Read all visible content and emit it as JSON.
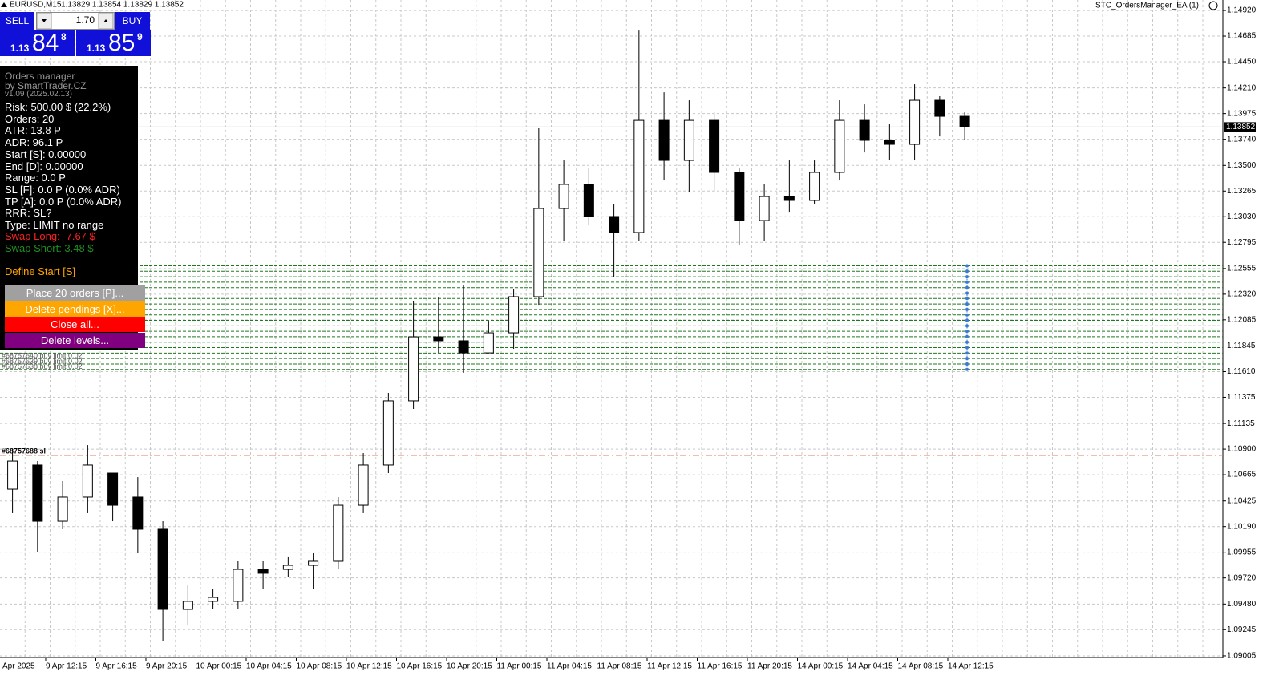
{
  "header": {
    "symbol": "EURUSD,M15",
    "ohlc": "1.13829 1.13854 1.13829 1.13852",
    "expert": "STC_OrdersManager_EA (1)"
  },
  "trade_panel": {
    "sell": "SELL",
    "buy": "BUY",
    "lot": "1.70",
    "bid": {
      "prefix": "1.13",
      "main": "84",
      "last": "8"
    },
    "ask": {
      "prefix": "1.13",
      "main": "85",
      "last": "9"
    }
  },
  "info_panel": {
    "title": "Orders manager",
    "author": "by SmartTrader.CZ",
    "version": "v1.09 (2025.02.13)",
    "lines": [
      "Risk: 500.00 $ (22.2%)",
      "Orders: 20",
      "ATR: 13.8 P",
      "ADR: 96.1 P",
      "Start [S]: 0.00000",
      "End [D]: 0.00000",
      "Range: 0.0 P",
      "SL [F]: 0.0 P (0.0% ADR)",
      "TP [A]: 0.0 P (0.0% ADR)",
      "RRR: SL?",
      "Type: LIMIT no range"
    ],
    "swap_long": "Swap Long: -7.67 $",
    "swap_short": "Swap Short: 3.48 $",
    "define": "Define Start [S]",
    "buttons": [
      "Place 20 orders [P]...",
      "Delete pendings [X]...",
      "Close all...",
      "Delete levels..."
    ]
  },
  "chart_data": {
    "type": "candlestick",
    "time_labels": [
      "Apr 2025",
      "9 Apr 12:15",
      "9 Apr 16:15",
      "9 Apr 20:15",
      "10 Apr 00:15",
      "10 Apr 04:15",
      "10 Apr 08:15",
      "10 Apr 12:15",
      "10 Apr 16:15",
      "10 Apr 20:15",
      "11 Apr 00:15",
      "11 Apr 04:15",
      "11 Apr 08:15",
      "11 Apr 12:15",
      "11 Apr 16:15",
      "11 Apr 20:15",
      "14 Apr 00:15",
      "14 Apr 04:15",
      "14 Apr 08:15",
      "14 Apr 12:15"
    ],
    "open": [
      1.10533,
      1.10754,
      1.10239,
      1.1046,
      1.1068,
      1.1046,
      1.10166,
      1.09431,
      1.09505,
      1.09505,
      1.09798,
      1.09798,
      1.09835,
      1.09872,
      1.10386,
      1.10754,
      1.11342,
      1.11929,
      1.11893,
      1.11782,
      1.11966,
      1.12297,
      1.13105,
      1.13326,
      1.13032,
      1.12885,
      1.13913,
      1.13546,
      1.13913,
      1.13436,
      1.12995,
      1.13215,
      1.13179,
      1.13436,
      1.13913,
      1.1373,
      1.13693,
      1.14097,
      1.1395
    ],
    "high": [
      1.10901,
      1.1079,
      1.10607,
      1.10937,
      1.1068,
      1.10643,
      1.10239,
      1.09651,
      1.09615,
      1.09872,
      1.09872,
      1.09909,
      1.09945,
      1.1046,
      1.10864,
      1.11415,
      1.1226,
      1.12297,
      1.12407,
      1.12076,
      1.1237,
      1.1384,
      1.13546,
      1.13472,
      1.13142,
      1.14736,
      1.1417,
      1.14097,
      1.13987,
      1.13472,
      1.13326,
      1.13546,
      1.13546,
      1.14097,
      1.1406,
      1.13877,
      1.14244,
      1.14134,
      1.13987
    ],
    "low": [
      1.10313,
      1.0996,
      1.10166,
      1.10313,
      1.10239,
      1.09945,
      1.09137,
      1.09284,
      1.09431,
      1.09431,
      1.09615,
      1.09725,
      1.09615,
      1.09798,
      1.10313,
      1.1068,
      1.11268,
      1.11782,
      1.11599,
      1.11782,
      1.11819,
      1.12223,
      1.12811,
      1.12958,
      1.1248,
      1.12811,
      1.13362,
      1.13252,
      1.13252,
      1.12774,
      1.12811,
      1.13068,
      1.13142,
      1.13362,
      1.13619,
      1.13546,
      1.13546,
      1.13766,
      1.1373
    ],
    "close": [
      1.1079,
      1.10239,
      1.1046,
      1.10754,
      1.10386,
      1.10166,
      1.09431,
      1.09505,
      1.09541,
      1.09798,
      1.09762,
      1.09835,
      1.09872,
      1.10386,
      1.10754,
      1.11342,
      1.11929,
      1.11893,
      1.11782,
      1.11966,
      1.12297,
      1.13105,
      1.13326,
      1.13032,
      1.12885,
      1.13913,
      1.13546,
      1.13913,
      1.13436,
      1.12995,
      1.13215,
      1.13179,
      1.13436,
      1.13913,
      1.1373,
      1.13693,
      1.14097,
      1.1395,
      1.13855
    ],
    "ylim": [
      1.0899,
      1.15016
    ],
    "yticks": [
      {
        "value": 1.1492,
        "label": "1.14920"
      },
      1.14685,
      {
        "value": 1.1445,
        "label": "1.14450"
      },
      {
        "value": 1.1421,
        "label": "1.14210"
      },
      1.13975,
      {
        "value": 1.1374,
        "label": "1.13740"
      },
      {
        "value": 1.135,
        "label": "1.13500"
      },
      1.13265,
      {
        "value": 1.1303,
        "label": "1.13030"
      },
      1.12795,
      1.12555,
      {
        "value": 1.1232,
        "label": "1.12320"
      },
      1.12085,
      1.11845,
      {
        "value": 1.1161,
        "label": "1.11610"
      },
      1.11375,
      1.11135,
      {
        "value": 1.109,
        "label": "1.10900"
      },
      1.10665,
      1.10425,
      {
        "value": 1.1019,
        "label": "1.10190"
      },
      1.09955,
      {
        "value": 1.0972,
        "label": "1.09720"
      },
      {
        "value": 1.0948,
        "label": "1.09480"
      },
      1.09245,
      1.09005
    ],
    "grid": true,
    "current_price": 1.13852,
    "pending_levels": [
      1.1258,
      1.1253,
      1.1248,
      1.1243,
      1.1238,
      1.1233,
      1.1228,
      1.1223,
      1.1218,
      1.1213,
      1.1208,
      1.1203,
      1.1198,
      1.1193,
      1.1188,
      1.1183,
      1.1178,
      1.1173,
      1.1168,
      1.1163
    ],
    "pending_color": "#1e7a1e",
    "order_labels": [
      "#68757640 buy limit 0.02",
      "#68757639 buy limit 0.02",
      "#68757638 buy limit 0.02"
    ],
    "sl_level": 1.10842,
    "sl_label": "#68757688 sl",
    "sl_color": "#e0805a"
  }
}
